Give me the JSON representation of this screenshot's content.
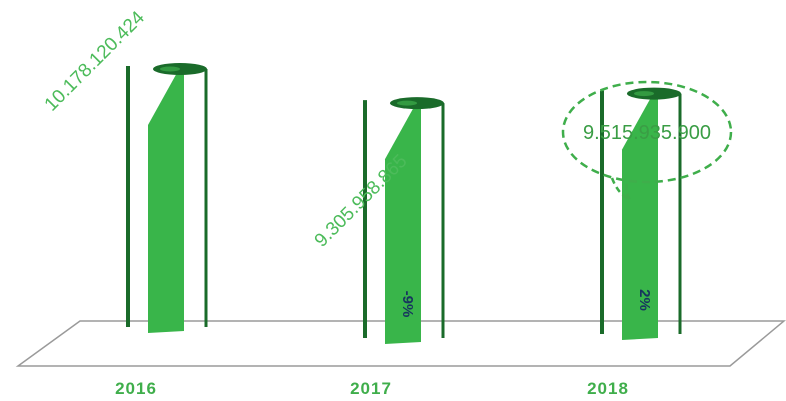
{
  "chart_data": {
    "type": "bar",
    "categories": [
      "2016",
      "2017",
      "2018"
    ],
    "values": [
      10178120424,
      9305958865,
      9515935900
    ],
    "value_labels": [
      "10.178.120.424",
      "9.305.958.865",
      "9.515.935.900"
    ],
    "change_labels": [
      "",
      "-9%",
      "2%"
    ],
    "highlight_index": 2,
    "title": "",
    "xlabel": "",
    "ylabel": "",
    "grid": false,
    "colors": {
      "bar": "#39b54a",
      "bar_dark": "#1a6b2a",
      "label": "#4cbb5a",
      "change": "#17355e",
      "floor": "#9a9a9a"
    }
  }
}
